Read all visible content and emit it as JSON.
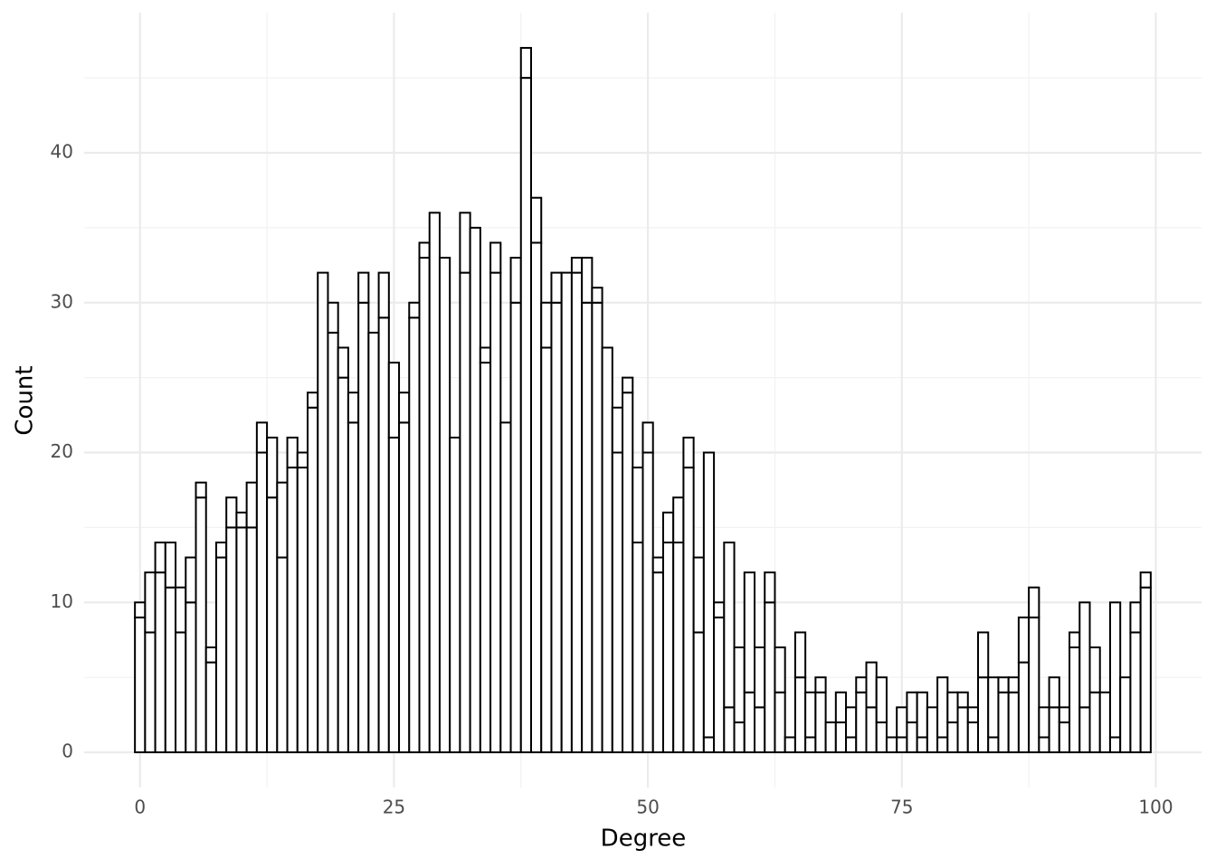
{
  "chart_data": {
    "type": "histogram",
    "x_label": "Degree",
    "y_label": "Count",
    "bins": [
      -0.5,
      0.5,
      1.5,
      2.5,
      3.5,
      4.5,
      5.5,
      6.5,
      7.5,
      8.5,
      9.5,
      10.5,
      11.5,
      12.5,
      13.5,
      14.5,
      15.5,
      16.5,
      17.5,
      18.5,
      19.5,
      20.5,
      21.5,
      22.5,
      23.5,
      24.5,
      25.5,
      26.5,
      27.5,
      28.5,
      29.5,
      30.5,
      31.5,
      32.5,
      33.5,
      34.5,
      35.5,
      36.5,
      37.5,
      38.5,
      39.5,
      40.5,
      41.5,
      42.5,
      43.5,
      44.5,
      45.5,
      46.5,
      47.5,
      48.5,
      49.5,
      50.5,
      51.5,
      52.5,
      53.5,
      54.5,
      55.5,
      56.5,
      57.5,
      58.5,
      59.5,
      60.5,
      61.5,
      62.5,
      63.5,
      64.5,
      65.5,
      66.5,
      67.5,
      68.5,
      69.5,
      70.5,
      71.5,
      72.5,
      73.5,
      74.5,
      75.5,
      76.5,
      77.5,
      78.5,
      79.5,
      80.5,
      81.5,
      82.5,
      83.5,
      84.5,
      85.5,
      86.5,
      87.5,
      88.5,
      89.5,
      90.5,
      91.5,
      92.5,
      93.5,
      94.5,
      95.5,
      96.5,
      97.5,
      98.5,
      99.5
    ],
    "series": [
      {
        "color": "#ffffff",
        "edgecolor": "#000000",
        "values": [
          9,
          8,
          12,
          11,
          8,
          10,
          17,
          6,
          13,
          15,
          15,
          15,
          20,
          17,
          13,
          19,
          19,
          23,
          32,
          28,
          25,
          22,
          30,
          28,
          29,
          21,
          22,
          29,
          33,
          36,
          33,
          21,
          32,
          35,
          26,
          32,
          22,
          30,
          45,
          34,
          27,
          30,
          32,
          32,
          30,
          30,
          27,
          20,
          24,
          14,
          20,
          12,
          14,
          14,
          19,
          8,
          1,
          9,
          3,
          2,
          4,
          3,
          10,
          4,
          1,
          5,
          1,
          4,
          2,
          2,
          1,
          4,
          3,
          2,
          1,
          1,
          2,
          1,
          3,
          1,
          2,
          3,
          2,
          5,
          1,
          4,
          4,
          6,
          9,
          1,
          3,
          2,
          7,
          3,
          4,
          4,
          1,
          5,
          8,
          11
        ]
      },
      {
        "color": "#ffffff",
        "edgecolor": "#000000",
        "values": [
          1,
          4,
          2,
          3,
          3,
          3,
          1,
          1,
          1,
          2,
          1,
          3,
          2,
          4,
          5,
          2,
          1,
          1,
          0,
          2,
          2,
          2,
          2,
          0,
          3,
          5,
          2,
          1,
          1,
          0,
          0,
          0,
          4,
          0,
          1,
          2,
          0,
          3,
          2,
          3,
          3,
          2,
          0,
          1,
          3,
          1,
          0,
          3,
          1,
          5,
          2,
          1,
          2,
          3,
          2,
          5,
          19,
          1,
          11,
          5,
          8,
          4,
          2,
          3,
          0,
          3,
          3,
          1,
          0,
          2,
          2,
          1,
          3,
          3,
          0,
          2,
          2,
          3,
          0,
          4,
          2,
          1,
          1,
          3,
          4,
          1,
          1,
          3,
          2,
          2,
          2,
          1,
          1,
          7,
          3,
          0,
          9,
          0,
          2,
          1
        ]
      }
    ],
    "stacked": true,
    "xlim": [
      -5.5,
      104.5
    ],
    "ylim": [
      -2.35,
      49.35
    ],
    "xticks": [
      0,
      25,
      50,
      75,
      100
    ],
    "yticks": [
      0,
      10,
      20,
      30,
      40
    ],
    "grid": true,
    "minor_grid": true
  }
}
